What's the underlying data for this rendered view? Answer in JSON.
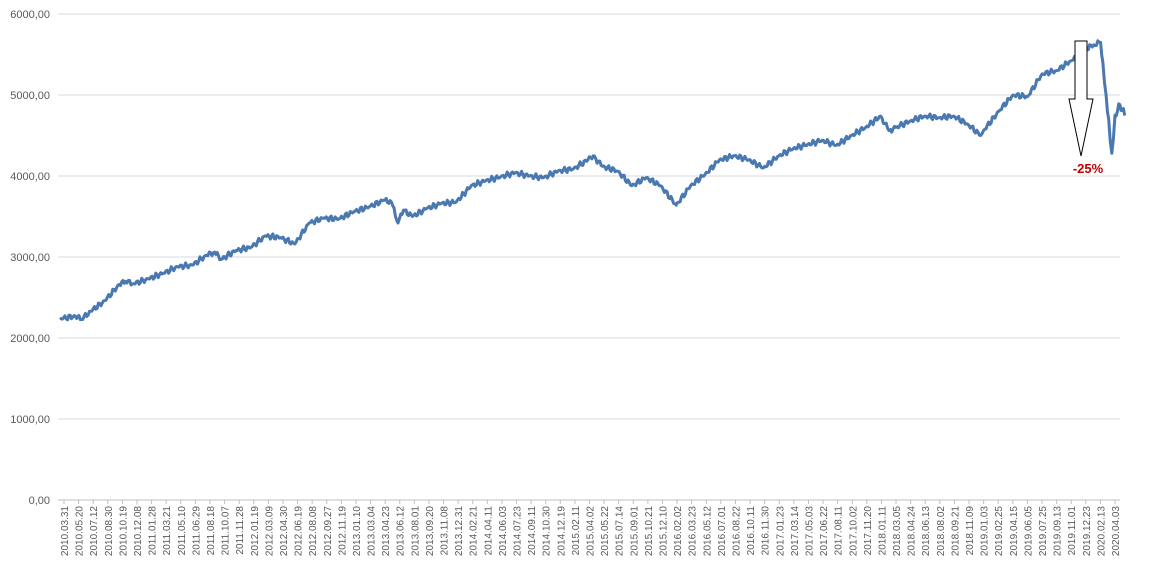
{
  "chart_data": {
    "type": "line",
    "title": "",
    "xlabel": "",
    "ylabel": "",
    "ylim": [
      0,
      6000
    ],
    "grid": true,
    "legend": "none",
    "y_ticks": [
      "0,00",
      "1000,00",
      "2000,00",
      "3000,00",
      "4000,00",
      "5000,00",
      "6000,00"
    ],
    "x_ticks": [
      "2010.03.31",
      "2010.05.20",
      "2010.07.12",
      "2010.08.30",
      "2010.10.19",
      "2010.12.08",
      "2011.01.28",
      "2011.03.21",
      "2011.05.10",
      "2011.06.29",
      "2011.08.18",
      "2011.10.07",
      "2011.11.28",
      "2012.01.19",
      "2012.03.09",
      "2012.04.30",
      "2012.06.19",
      "2012.08.08",
      "2012.09.27",
      "2012.11.19",
      "2013.01.10",
      "2013.03.04",
      "2013.04.23",
      "2013.06.12",
      "2013.08.01",
      "2013.09.20",
      "2013.11.08",
      "2013.12.31",
      "2014.02.21",
      "2014.04.11",
      "2014.06.03",
      "2014.07.23",
      "2014.09.11",
      "2014.10.30",
      "2014.12.19",
      "2015.02.11",
      "2015.04.02",
      "2015.05.22",
      "2015.07.14",
      "2015.09.01",
      "2015.10.21",
      "2015.12.10",
      "2016.02.02",
      "2016.03.23",
      "2016.05.12",
      "2016.07.01",
      "2016.08.22",
      "2016.10.11",
      "2016.11.30",
      "2017.01.23",
      "2017.03.14",
      "2017.05.03",
      "2017.06.22",
      "2017.08.11",
      "2017.10.02",
      "2017.11.20",
      "2018.01.11",
      "2018.03.05",
      "2018.04.24",
      "2018.06.13",
      "2018.08.02",
      "2018.09.21",
      "2018.11.09",
      "2019.01.03",
      "2019.02.25",
      "2019.04.15",
      "2019.06.05",
      "2019.07.25",
      "2019.09.13",
      "2019.11.01",
      "2019.12.23",
      "2020.02.13",
      "2020.04.03"
    ],
    "series": [
      {
        "color": "#4a78b0",
        "points": [
          [
            "2010.03.31",
            2240
          ],
          [
            "2010.05.20",
            2270
          ],
          [
            "2010.06.10",
            2230
          ],
          [
            "2010.07.12",
            2330
          ],
          [
            "2010.08.30",
            2460
          ],
          [
            "2010.10.19",
            2660
          ],
          [
            "2010.11.10",
            2700
          ],
          [
            "2010.12.08",
            2670
          ],
          [
            "2011.01.28",
            2730
          ],
          [
            "2011.03.21",
            2800
          ],
          [
            "2011.05.10",
            2880
          ],
          [
            "2011.06.29",
            2900
          ],
          [
            "2011.08.18",
            3020
          ],
          [
            "2011.09.15",
            3060
          ],
          [
            "2011.10.07",
            2970
          ],
          [
            "2011.11.28",
            3080
          ],
          [
            "2012.01.19",
            3120
          ],
          [
            "2012.03.09",
            3260
          ],
          [
            "2012.04.30",
            3240
          ],
          [
            "2012.06.19",
            3160
          ],
          [
            "2012.08.08",
            3420
          ],
          [
            "2012.09.27",
            3480
          ],
          [
            "2012.11.19",
            3470
          ],
          [
            "2013.01.10",
            3560
          ],
          [
            "2013.03.04",
            3620
          ],
          [
            "2013.04.23",
            3700
          ],
          [
            "2013.05.20",
            3680
          ],
          [
            "2013.06.12",
            3420
          ],
          [
            "2013.07.01",
            3580
          ],
          [
            "2013.08.01",
            3500
          ],
          [
            "2013.09.20",
            3600
          ],
          [
            "2013.11.08",
            3660
          ],
          [
            "2013.12.31",
            3680
          ],
          [
            "2014.02.21",
            3880
          ],
          [
            "2014.04.11",
            3940
          ],
          [
            "2014.06.03",
            3990
          ],
          [
            "2014.07.23",
            4040
          ],
          [
            "2014.09.11",
            4000
          ],
          [
            "2014.10.30",
            3980
          ],
          [
            "2014.12.19",
            4060
          ],
          [
            "2015.02.11",
            4090
          ],
          [
            "2015.04.02",
            4200
          ],
          [
            "2015.04.20",
            4250
          ],
          [
            "2015.05.22",
            4120
          ],
          [
            "2015.07.14",
            4060
          ],
          [
            "2015.09.01",
            3880
          ],
          [
            "2015.10.21",
            3980
          ],
          [
            "2015.12.10",
            3880
          ],
          [
            "2016.02.02",
            3640
          ],
          [
            "2016.03.23",
            3880
          ],
          [
            "2016.05.12",
            4020
          ],
          [
            "2016.07.01",
            4200
          ],
          [
            "2016.08.22",
            4250
          ],
          [
            "2016.10.11",
            4200
          ],
          [
            "2016.11.30",
            4100
          ],
          [
            "2017.01.23",
            4250
          ],
          [
            "2017.03.14",
            4340
          ],
          [
            "2017.05.03",
            4390
          ],
          [
            "2017.06.22",
            4440
          ],
          [
            "2017.08.11",
            4380
          ],
          [
            "2017.10.02",
            4500
          ],
          [
            "2017.11.20",
            4600
          ],
          [
            "2018.01.11",
            4740
          ],
          [
            "2018.02.09",
            4560
          ],
          [
            "2018.03.05",
            4600
          ],
          [
            "2018.04.24",
            4680
          ],
          [
            "2018.06.13",
            4740
          ],
          [
            "2018.08.02",
            4720
          ],
          [
            "2018.09.21",
            4740
          ],
          [
            "2018.11.09",
            4640
          ],
          [
            "2018.12.24",
            4500
          ],
          [
            "2019.01.03",
            4560
          ],
          [
            "2019.02.25",
            4800
          ],
          [
            "2019.04.15",
            5000
          ],
          [
            "2019.06.05",
            4980
          ],
          [
            "2019.07.25",
            5260
          ],
          [
            "2019.09.13",
            5300
          ],
          [
            "2019.11.01",
            5420
          ],
          [
            "2019.12.23",
            5560
          ],
          [
            "2020.01.20",
            5620
          ],
          [
            "2020.02.13",
            5650
          ],
          [
            "2020.02.21",
            5400
          ],
          [
            "2020.03.03",
            5000
          ],
          [
            "2020.03.12",
            4700
          ],
          [
            "2020.03.23",
            4280
          ],
          [
            "2020.04.03",
            4750
          ],
          [
            "2020.04.20",
            4880
          ],
          [
            "2020.05.06",
            4760
          ]
        ]
      }
    ],
    "annotation": {
      "text": "-25%",
      "color": "#c00000"
    }
  }
}
